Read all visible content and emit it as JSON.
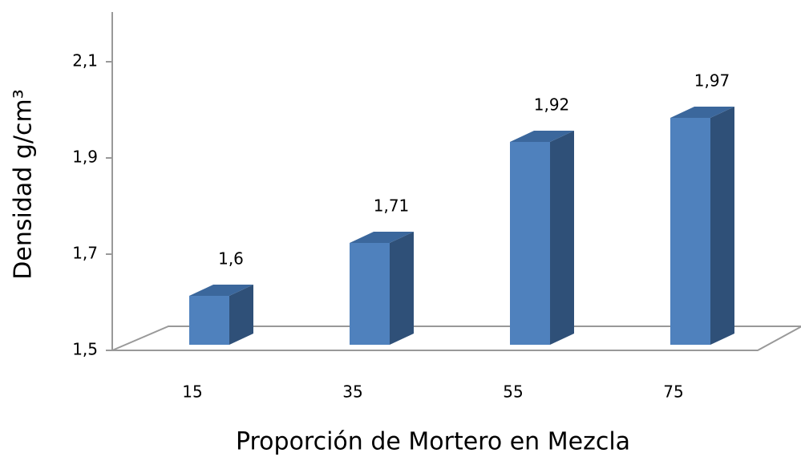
{
  "chart_data": {
    "type": "bar3d",
    "x_label": "Proporción de Mortero en Mezcla",
    "y_label": "Densidad g/cm³",
    "categories": [
      "15",
      "35",
      "55",
      "75"
    ],
    "values": [
      1.6,
      1.71,
      1.92,
      1.97
    ],
    "value_labels": [
      "1,6",
      "1,71",
      "1,92",
      "1,97"
    ],
    "color": "#4f81bd",
    "ylim": [
      1.5,
      2.2
    ],
    "yticks": [
      {
        "value": 1.5,
        "label": "1,5"
      },
      {
        "value": 1.7,
        "label": "1,7"
      },
      {
        "value": 1.9,
        "label": "1,9"
      },
      {
        "value": 2.1,
        "label": "2,1"
      }
    ]
  }
}
